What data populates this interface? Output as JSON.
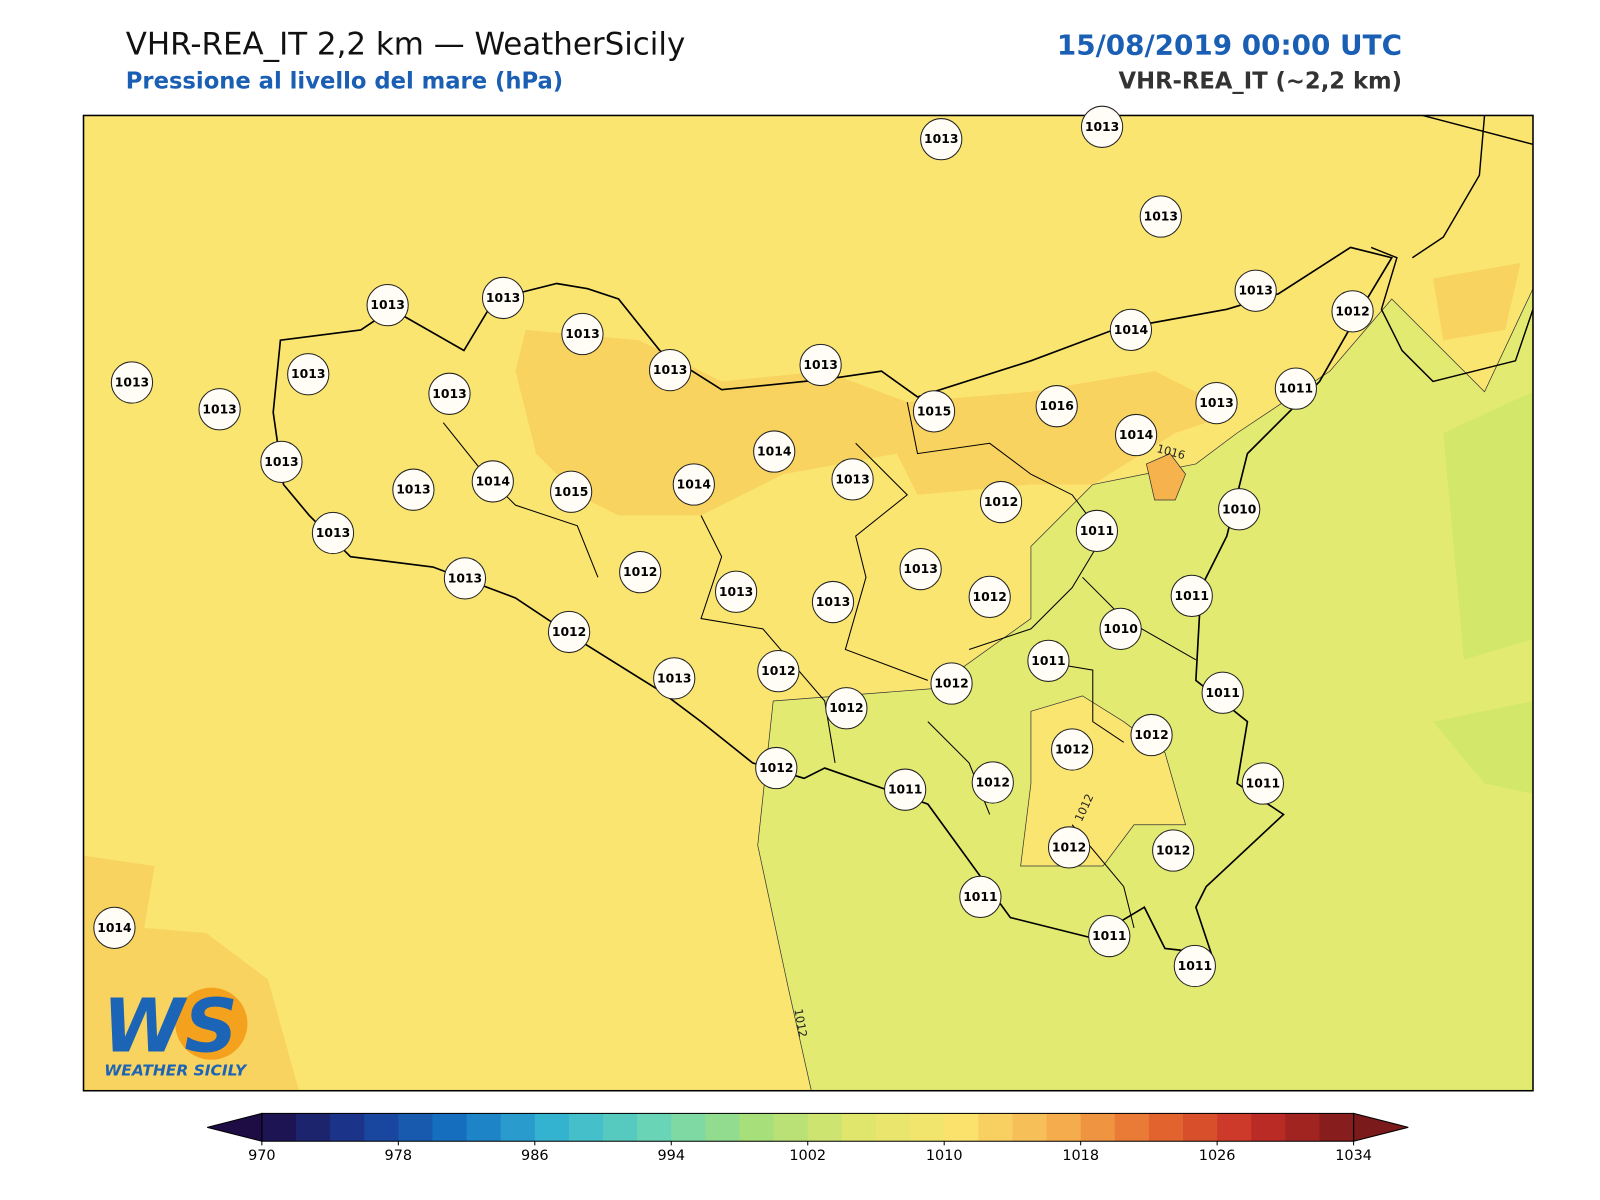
{
  "header": {
    "title": "VHR-REA_IT 2,2 km — WeatherSicily",
    "subtitle": "Pressione al livello del mare (hPa)",
    "date": "15/08/2019 00:00 UTC",
    "model": "VHR-REA_IT (~2,2 km)"
  },
  "stations": [
    1013,
    1013,
    1013,
    1013,
    1013,
    1013,
    1013,
    1013,
    1013,
    1012,
    1014,
    1013,
    1013,
    1013,
    1013,
    1015,
    1016,
    1013,
    1011,
    1014,
    1014,
    1013,
    1013,
    1014,
    1015,
    1014,
    1013,
    1012,
    1010,
    1011,
    1013,
    1013,
    1012,
    1013,
    1013,
    1013,
    1012,
    1011,
    1010,
    1012,
    1011,
    1013,
    1012,
    1012,
    1011,
    1012,
    1012,
    1012,
    1012,
    1011,
    1012,
    1011,
    1012,
    1012,
    1014,
    1011,
    1011,
    1011
  ],
  "contour_labels": [
    "1016",
    "1012",
    "1012"
  ],
  "logo": {
    "mark": "WS",
    "text": "WEATHER SICILY"
  },
  "colorbar": {
    "range": [
      970,
      1034
    ],
    "step": 2,
    "ticks": [
      970,
      978,
      986,
      994,
      1002,
      1010,
      1018,
      1026,
      1034
    ],
    "colors": [
      "#1e0c45",
      "#1a3a94",
      "#1574c4",
      "#37b8d2",
      "#6cd6b5",
      "#a8df7a",
      "#e0e66c",
      "#fae46f",
      "#f6b24e",
      "#e66a30",
      "#c62e28",
      "#7a1a1a"
    ]
  }
}
